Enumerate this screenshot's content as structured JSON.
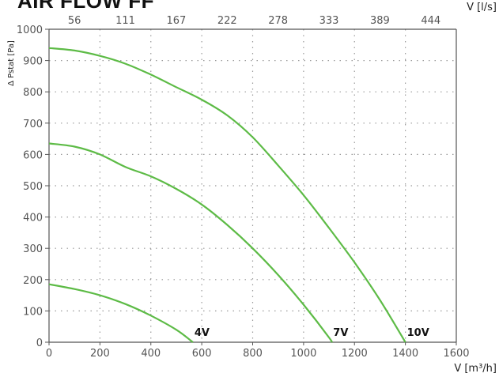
{
  "title": "AIR FLOW FF",
  "chart_data": {
    "type": "line",
    "title": "AIR FLOW FF",
    "xlabel": "V [m³/h]",
    "x2label": "V [l/s]",
    "ylabel": "Δ Pstat [Pa]",
    "xlim": [
      0,
      1600
    ],
    "ylim": [
      0,
      1000
    ],
    "x_ticks": [
      "0",
      "200",
      "400",
      "600",
      "800",
      "1000",
      "1200",
      "1400",
      "1600"
    ],
    "x2_ticks": [
      "56",
      "111",
      "167",
      "222",
      "278",
      "333",
      "389",
      "444"
    ],
    "x2_tick_positions": [
      200,
      400,
      600,
      800,
      1000,
      1200,
      1400,
      1600
    ],
    "y_ticks": [
      "0",
      "100",
      "200",
      "300",
      "400",
      "500",
      "600",
      "700",
      "800",
      "900",
      "1000"
    ],
    "grid": true,
    "line_color": "#5dbb46",
    "series": [
      {
        "name": "4V",
        "x": [
          0,
          100,
          200,
          300,
          400,
          500,
          565
        ],
        "y": [
          185,
          170,
          150,
          122,
          85,
          40,
          0
        ]
      },
      {
        "name": "7V",
        "x": [
          0,
          100,
          200,
          300,
          400,
          500,
          600,
          700,
          800,
          900,
          1000,
          1100,
          1110
        ],
        "y": [
          635,
          625,
          600,
          560,
          530,
          490,
          440,
          375,
          300,
          215,
          120,
          15,
          0
        ]
      },
      {
        "name": "10V",
        "x": [
          0,
          100,
          200,
          300,
          400,
          500,
          600,
          700,
          800,
          900,
          1000,
          1100,
          1200,
          1300,
          1400
        ],
        "y": [
          940,
          932,
          915,
          890,
          855,
          815,
          775,
          725,
          655,
          565,
          470,
          365,
          255,
          135,
          0
        ]
      }
    ]
  }
}
